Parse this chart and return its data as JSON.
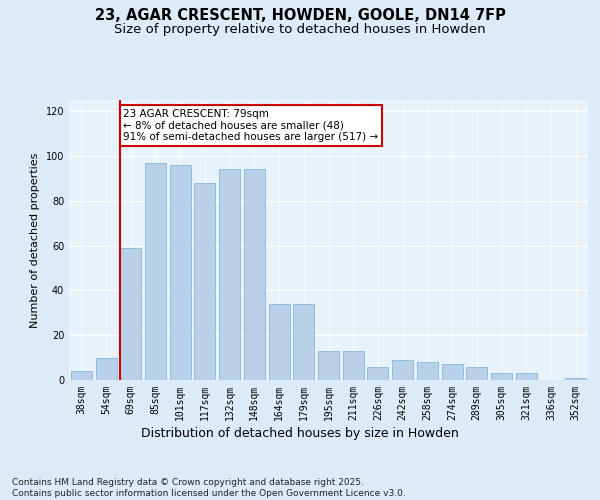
{
  "title1": "23, AGAR CRESCENT, HOWDEN, GOOLE, DN14 7FP",
  "title2": "Size of property relative to detached houses in Howden",
  "xlabel": "Distribution of detached houses by size in Howden",
  "ylabel": "Number of detached properties",
  "categories": [
    "38sqm",
    "54sqm",
    "69sqm",
    "85sqm",
    "101sqm",
    "117sqm",
    "132sqm",
    "148sqm",
    "164sqm",
    "179sqm",
    "195sqm",
    "211sqm",
    "226sqm",
    "242sqm",
    "258sqm",
    "274sqm",
    "289sqm",
    "305sqm",
    "321sqm",
    "336sqm",
    "352sqm"
  ],
  "values": [
    4,
    10,
    59,
    97,
    96,
    88,
    94,
    94,
    34,
    34,
    13,
    13,
    6,
    9,
    8,
    7,
    6,
    3,
    3,
    0,
    1
  ],
  "bar_color": "#b8d0e8",
  "bar_edge_color": "#7aafd4",
  "vline_idx": 2,
  "vline_color": "#cc0000",
  "annotation_text": "23 AGAR CRESCENT: 79sqm\n← 8% of detached houses are smaller (48)\n91% of semi-detached houses are larger (517) →",
  "ylim": [
    0,
    125
  ],
  "yticks": [
    0,
    20,
    40,
    60,
    80,
    100,
    120
  ],
  "bg_color": "#ddeaf7",
  "plot_bg": "#e8f2fb",
  "footer": "Contains HM Land Registry data © Crown copyright and database right 2025.\nContains public sector information licensed under the Open Government Licence v3.0.",
  "title1_fontsize": 10.5,
  "title2_fontsize": 9.5,
  "xlabel_fontsize": 9,
  "ylabel_fontsize": 8,
  "tick_fontsize": 7,
  "footer_fontsize": 6.5,
  "annot_fontsize": 7.5
}
